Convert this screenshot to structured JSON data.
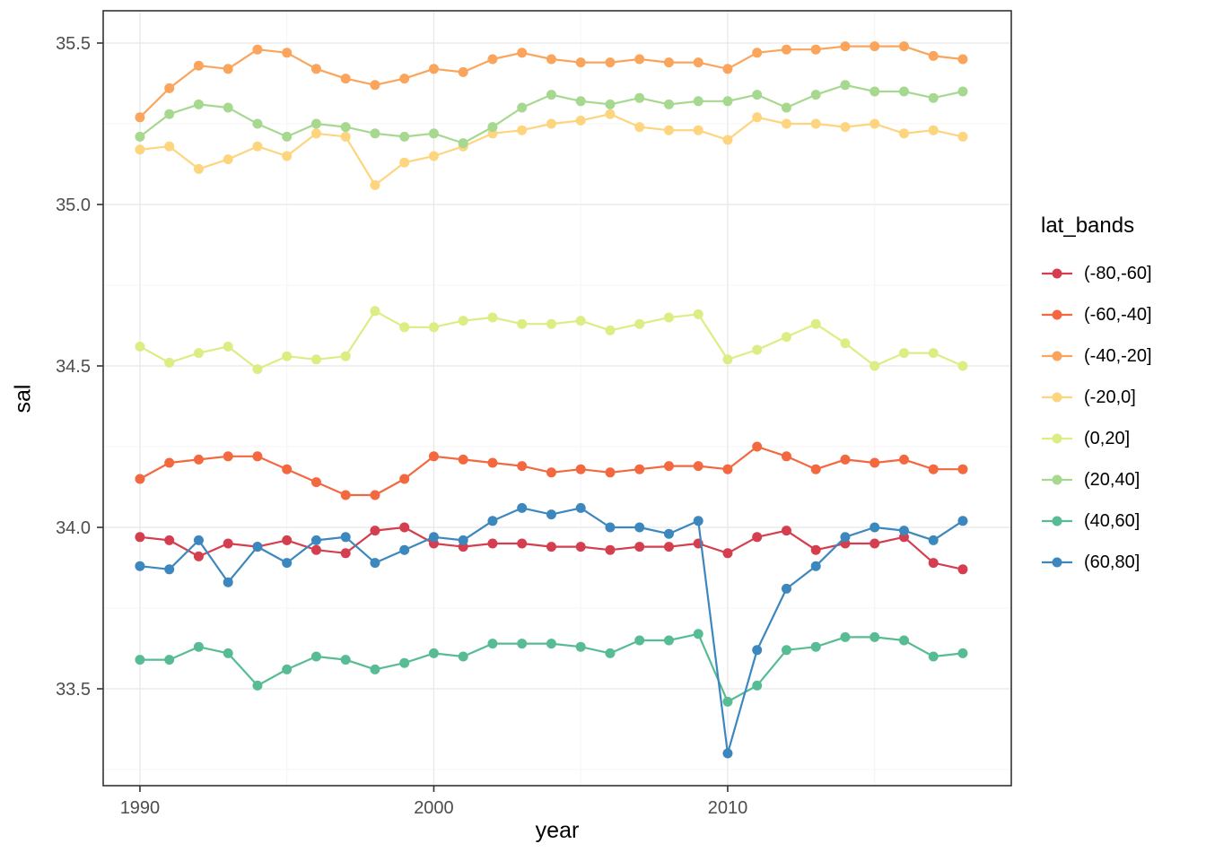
{
  "chart_data": {
    "type": "line",
    "xlabel": "year",
    "ylabel": "sal",
    "legend_title": "lat_bands",
    "legend_position": "right",
    "grid": true,
    "xlim": [
      1988.75,
      2019.65
    ],
    "ylim": [
      33.2,
      35.6
    ],
    "x_ticks": [
      1990,
      2000,
      2010
    ],
    "x_tick_labels": [
      "1990",
      "2000",
      "2010"
    ],
    "x_minor": [
      1995,
      2005,
      2015
    ],
    "y_ticks": [
      33.5,
      34.0,
      34.5,
      35.0,
      35.5
    ],
    "y_tick_labels": [
      "33.5",
      "34.0",
      "34.5",
      "35.0",
      "35.5"
    ],
    "y_minor": [
      33.25,
      33.75,
      34.25,
      34.75,
      35.25
    ],
    "x": [
      1990,
      1991,
      1992,
      1993,
      1994,
      1995,
      1996,
      1997,
      1998,
      1999,
      2000,
      2001,
      2002,
      2003,
      2004,
      2005,
      2006,
      2007,
      2008,
      2009,
      2010,
      2011,
      2012,
      2013,
      2014,
      2015,
      2016,
      2017,
      2018
    ],
    "series": [
      {
        "name": "(-80,-60]",
        "color": "#D53E4F",
        "values": [
          33.97,
          33.96,
          33.91,
          33.95,
          33.94,
          33.96,
          33.93,
          33.92,
          33.99,
          34.0,
          33.95,
          33.94,
          33.95,
          33.95,
          33.94,
          33.94,
          33.93,
          33.94,
          33.94,
          33.95,
          33.92,
          33.97,
          33.99,
          33.93,
          33.95,
          33.95,
          33.97,
          33.89,
          33.87
        ]
      },
      {
        "name": "(-60,-40]",
        "color": "#F4683F",
        "values": [
          34.15,
          34.2,
          34.21,
          34.22,
          34.22,
          34.18,
          34.14,
          34.1,
          34.1,
          34.15,
          34.22,
          34.21,
          34.2,
          34.19,
          34.17,
          34.18,
          34.17,
          34.18,
          34.19,
          34.19,
          34.18,
          34.25,
          34.22,
          34.18,
          34.21,
          34.2,
          34.21,
          34.18,
          34.18
        ]
      },
      {
        "name": "(-40,-20]",
        "color": "#FBA45C",
        "values": [
          35.27,
          35.36,
          35.43,
          35.42,
          35.48,
          35.47,
          35.42,
          35.39,
          35.37,
          35.39,
          35.42,
          35.41,
          35.45,
          35.47,
          35.45,
          35.44,
          35.44,
          35.45,
          35.44,
          35.44,
          35.42,
          35.47,
          35.48,
          35.48,
          35.49,
          35.49,
          35.49,
          35.46,
          35.45
        ]
      },
      {
        "name": "(-20,0]",
        "color": "#FDD57E",
        "values": [
          35.17,
          35.18,
          35.11,
          35.14,
          35.18,
          35.15,
          35.22,
          35.21,
          35.06,
          35.13,
          35.15,
          35.18,
          35.22,
          35.23,
          35.25,
          35.26,
          35.28,
          35.24,
          35.23,
          35.23,
          35.2,
          35.27,
          35.25,
          35.25,
          35.24,
          35.25,
          35.22,
          35.23,
          35.21
        ]
      },
      {
        "name": "(0,20]",
        "color": "#DDED83",
        "values": [
          34.56,
          34.51,
          34.54,
          34.56,
          34.49,
          34.53,
          34.52,
          34.53,
          34.67,
          34.62,
          34.62,
          34.64,
          34.65,
          34.63,
          34.63,
          34.64,
          34.61,
          34.63,
          34.65,
          34.66,
          34.52,
          34.55,
          34.59,
          34.63,
          34.57,
          34.5,
          34.54,
          34.54,
          34.5
        ]
      },
      {
        "name": "(20,40]",
        "color": "#A6D98F",
        "values": [
          35.21,
          35.28,
          35.31,
          35.3,
          35.25,
          35.21,
          35.25,
          35.24,
          35.22,
          35.21,
          35.22,
          35.19,
          35.24,
          35.3,
          35.34,
          35.32,
          35.31,
          35.33,
          35.31,
          35.32,
          35.32,
          35.34,
          35.3,
          35.34,
          35.37,
          35.35,
          35.35,
          35.33,
          35.35
        ]
      },
      {
        "name": "(40,60]",
        "color": "#57BC93",
        "values": [
          33.59,
          33.59,
          33.63,
          33.61,
          33.51,
          33.56,
          33.6,
          33.59,
          33.56,
          33.58,
          33.61,
          33.6,
          33.64,
          33.64,
          33.64,
          33.63,
          33.61,
          33.65,
          33.65,
          33.67,
          33.46,
          33.51,
          33.62,
          33.63,
          33.66,
          33.66,
          33.65,
          33.6,
          33.61
        ]
      },
      {
        "name": "(60,80]",
        "color": "#3C87BD",
        "values": [
          33.88,
          33.87,
          33.96,
          33.83,
          33.94,
          33.89,
          33.96,
          33.97,
          33.89,
          33.93,
          33.97,
          33.96,
          34.02,
          34.06,
          34.04,
          34.06,
          34.0,
          34.0,
          33.98,
          34.02,
          33.3,
          33.62,
          33.81,
          33.88,
          33.97,
          34.0,
          33.99,
          33.96,
          34.02
        ]
      }
    ],
    "colors": {
      "panel_background": "#FFFFFF",
      "grid_major": "#E8E8E8",
      "grid_minor": "#F4F4F4",
      "panel_border": "#333333",
      "tick_text": "#4D4D4D",
      "axis_title_text": "#000000"
    }
  }
}
